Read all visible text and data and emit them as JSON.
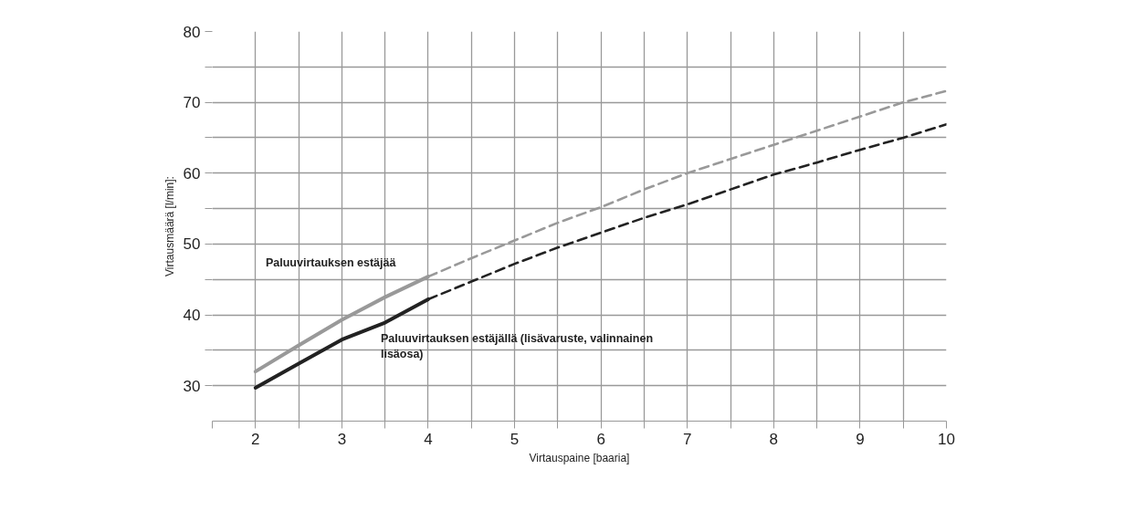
{
  "chart_data": {
    "type": "line",
    "xlabel": "Virtauspaine [baaria]",
    "ylabel": "Virtausmäärä [l/min]:",
    "xlim": [
      1.5,
      10
    ],
    "ylim": [
      25,
      80
    ],
    "xticks": [
      {
        "value": 1.5,
        "label": null
      },
      2,
      {
        "value": 2.5,
        "label": null
      },
      3,
      {
        "value": 3.5,
        "label": null
      },
      4,
      {
        "value": 4.5,
        "label": null
      },
      5,
      {
        "value": 5.5,
        "label": null
      },
      6,
      {
        "value": 6.5,
        "label": null
      },
      7,
      {
        "value": 7.5,
        "label": null
      },
      8,
      {
        "value": 8.5,
        "label": null
      },
      9,
      {
        "value": 9.5,
        "label": null
      },
      10
    ],
    "yticks": [
      30,
      {
        "value": 35,
        "label": null
      },
      40,
      {
        "value": 45,
        "label": null
      },
      50,
      {
        "value": 55,
        "label": null
      },
      60,
      {
        "value": 65,
        "label": null
      },
      70,
      {
        "value": 75,
        "label": null
      },
      80
    ],
    "grid": true,
    "series": [
      {
        "name": "Paluuvirtauksen estäjää",
        "color": "#999999",
        "line_style": "solid",
        "x": [
          2,
          2.5,
          3,
          3.5,
          4
        ],
        "values": [
          32,
          35.7,
          39.3,
          42.5,
          45.4
        ]
      },
      {
        "color": "#999999",
        "line_style": "dashed",
        "x": [
          4,
          4.5,
          5,
          5.5,
          6,
          6.5,
          7,
          7.5,
          8,
          8.5,
          9,
          9.5,
          10
        ],
        "values": [
          45.4,
          48,
          50.5,
          53,
          55.2,
          57.7,
          60,
          62,
          64,
          66,
          68,
          70,
          71.6
        ]
      },
      {
        "name": "Paluuvirtauksen estäjällä (lisävaruste, valinnainen lisäosa)",
        "color": "#222222",
        "line_style": "solid",
        "x": [
          2,
          2.5,
          3,
          3.5,
          4
        ],
        "values": [
          29.7,
          33.1,
          36.5,
          38.9,
          42.2
        ]
      },
      {
        "color": "#222222",
        "line_style": "dashed",
        "x": [
          4,
          4.5,
          5,
          5.5,
          6,
          6.5,
          7,
          7.5,
          8,
          8.5,
          9,
          9.5,
          10
        ],
        "values": [
          42.2,
          44.7,
          47.2,
          49.5,
          51.6,
          53.7,
          55.6,
          57.7,
          59.8,
          61.5,
          63.3,
          65,
          66.9
        ]
      }
    ]
  }
}
